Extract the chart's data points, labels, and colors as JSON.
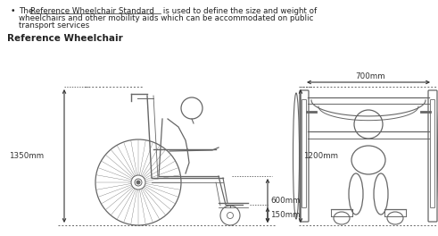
{
  "background_color": "#ffffff",
  "text_color": "#222222",
  "line_color": "#666666",
  "dim_color": "#333333",
  "bullet_prefix": "The ",
  "bullet_underline": "Reference Wheelchair Standard",
  "bullet_suffix": " is used to define the size and weight of",
  "bullet_line2": "wheelchairs and other mobility aids which can be accommodated on public",
  "bullet_line3": "transport services",
  "section_title": "Reference Wheelchair",
  "dim_1350": "1350mm",
  "dim_1200": "1200mm",
  "dim_700": "700mm",
  "dim_600": "600mm",
  "dim_150": "150mm",
  "figsize": [
    4.91,
    2.64
  ],
  "dpi": 100
}
